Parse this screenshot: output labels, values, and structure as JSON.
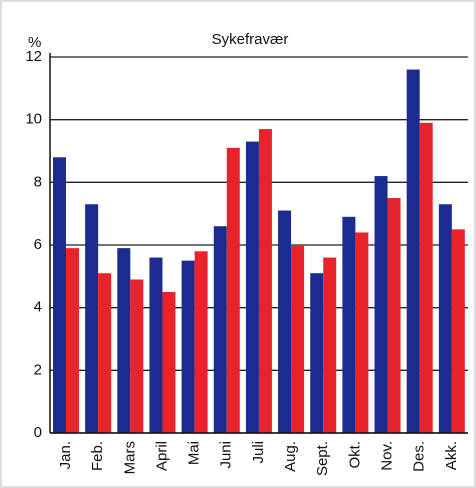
{
  "chart_data": {
    "type": "bar",
    "title": "Sykefravær",
    "y_label": "%",
    "categories": [
      "Jan.",
      "Feb.",
      "Mars",
      "April",
      "Mai",
      "Juni",
      "Juli",
      "Aug.",
      "Sept.",
      "Okt.",
      "Nov.",
      "Des.",
      "Akk."
    ],
    "series": [
      {
        "color": "#1c2b8f",
        "values": [
          8.8,
          7.3,
          5.9,
          5.6,
          5.5,
          6.6,
          9.3,
          7.1,
          5.1,
          6.9,
          8.2,
          11.6,
          7.3
        ]
      },
      {
        "color": "#e8232b",
        "values": [
          5.9,
          5.1,
          4.9,
          4.5,
          5.8,
          9.1,
          9.7,
          6.0,
          5.6,
          6.4,
          7.5,
          9.9,
          6.5
        ]
      }
    ],
    "ylim": [
      0,
      12
    ],
    "yticks": [
      0,
      2,
      4,
      6,
      8,
      10,
      12
    ],
    "grid": true
  }
}
